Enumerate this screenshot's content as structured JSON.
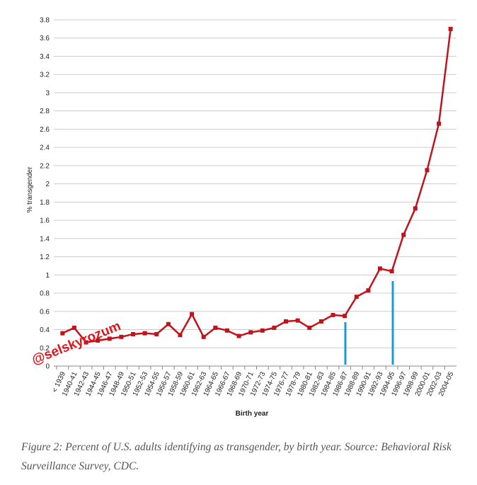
{
  "chart_data": {
    "type": "line",
    "y_label": "% transgender",
    "x_label": "Birth year",
    "watermark": "@selskyrozum",
    "caption": "Figure 2: Percent of U.S. adults identifying as transgender, by birth year. Source: Behavioral Risk Surveillance Survey, CDC.",
    "categories": [
      "< 1939",
      "1940-41",
      "1942-43",
      "1944-45",
      "1946-47",
      "1948-49",
      "1950-51",
      "1952-53",
      "1954-55",
      "1956-57",
      "1958-59",
      "1960-61",
      "1962-63",
      "1964-65",
      "1966-67",
      "1968-69",
      "1970-71",
      "1972-73",
      "1974-75",
      "1976-77",
      "1978-79",
      "1980-81",
      "1982-83",
      "1984-85",
      "1986-87",
      "1988-89",
      "1990-91",
      "1992-93",
      "1994-95",
      "1996-97",
      "1998-99",
      "2000-01",
      "2002-03",
      "2004-05"
    ],
    "values": [
      0.36,
      0.42,
      0.26,
      0.28,
      0.3,
      0.32,
      0.35,
      0.36,
      0.35,
      0.46,
      0.34,
      0.57,
      0.32,
      0.42,
      0.39,
      0.33,
      0.37,
      0.39,
      0.42,
      0.49,
      0.5,
      0.42,
      0.49,
      0.56,
      0.55,
      0.76,
      0.83,
      1.07,
      1.04,
      1.44,
      1.73,
      2.15,
      2.66,
      3.7
    ],
    "color": "#c0141c",
    "ylim": [
      0,
      3.8
    ],
    "yticks": [
      0,
      0.2,
      0.4,
      0.6,
      0.8,
      1,
      1.2,
      1.4,
      1.6,
      1.8,
      2,
      2.2,
      2.4,
      2.6,
      2.8,
      3,
      3.2,
      3.4,
      3.6,
      3.8
    ],
    "grid": true
  }
}
